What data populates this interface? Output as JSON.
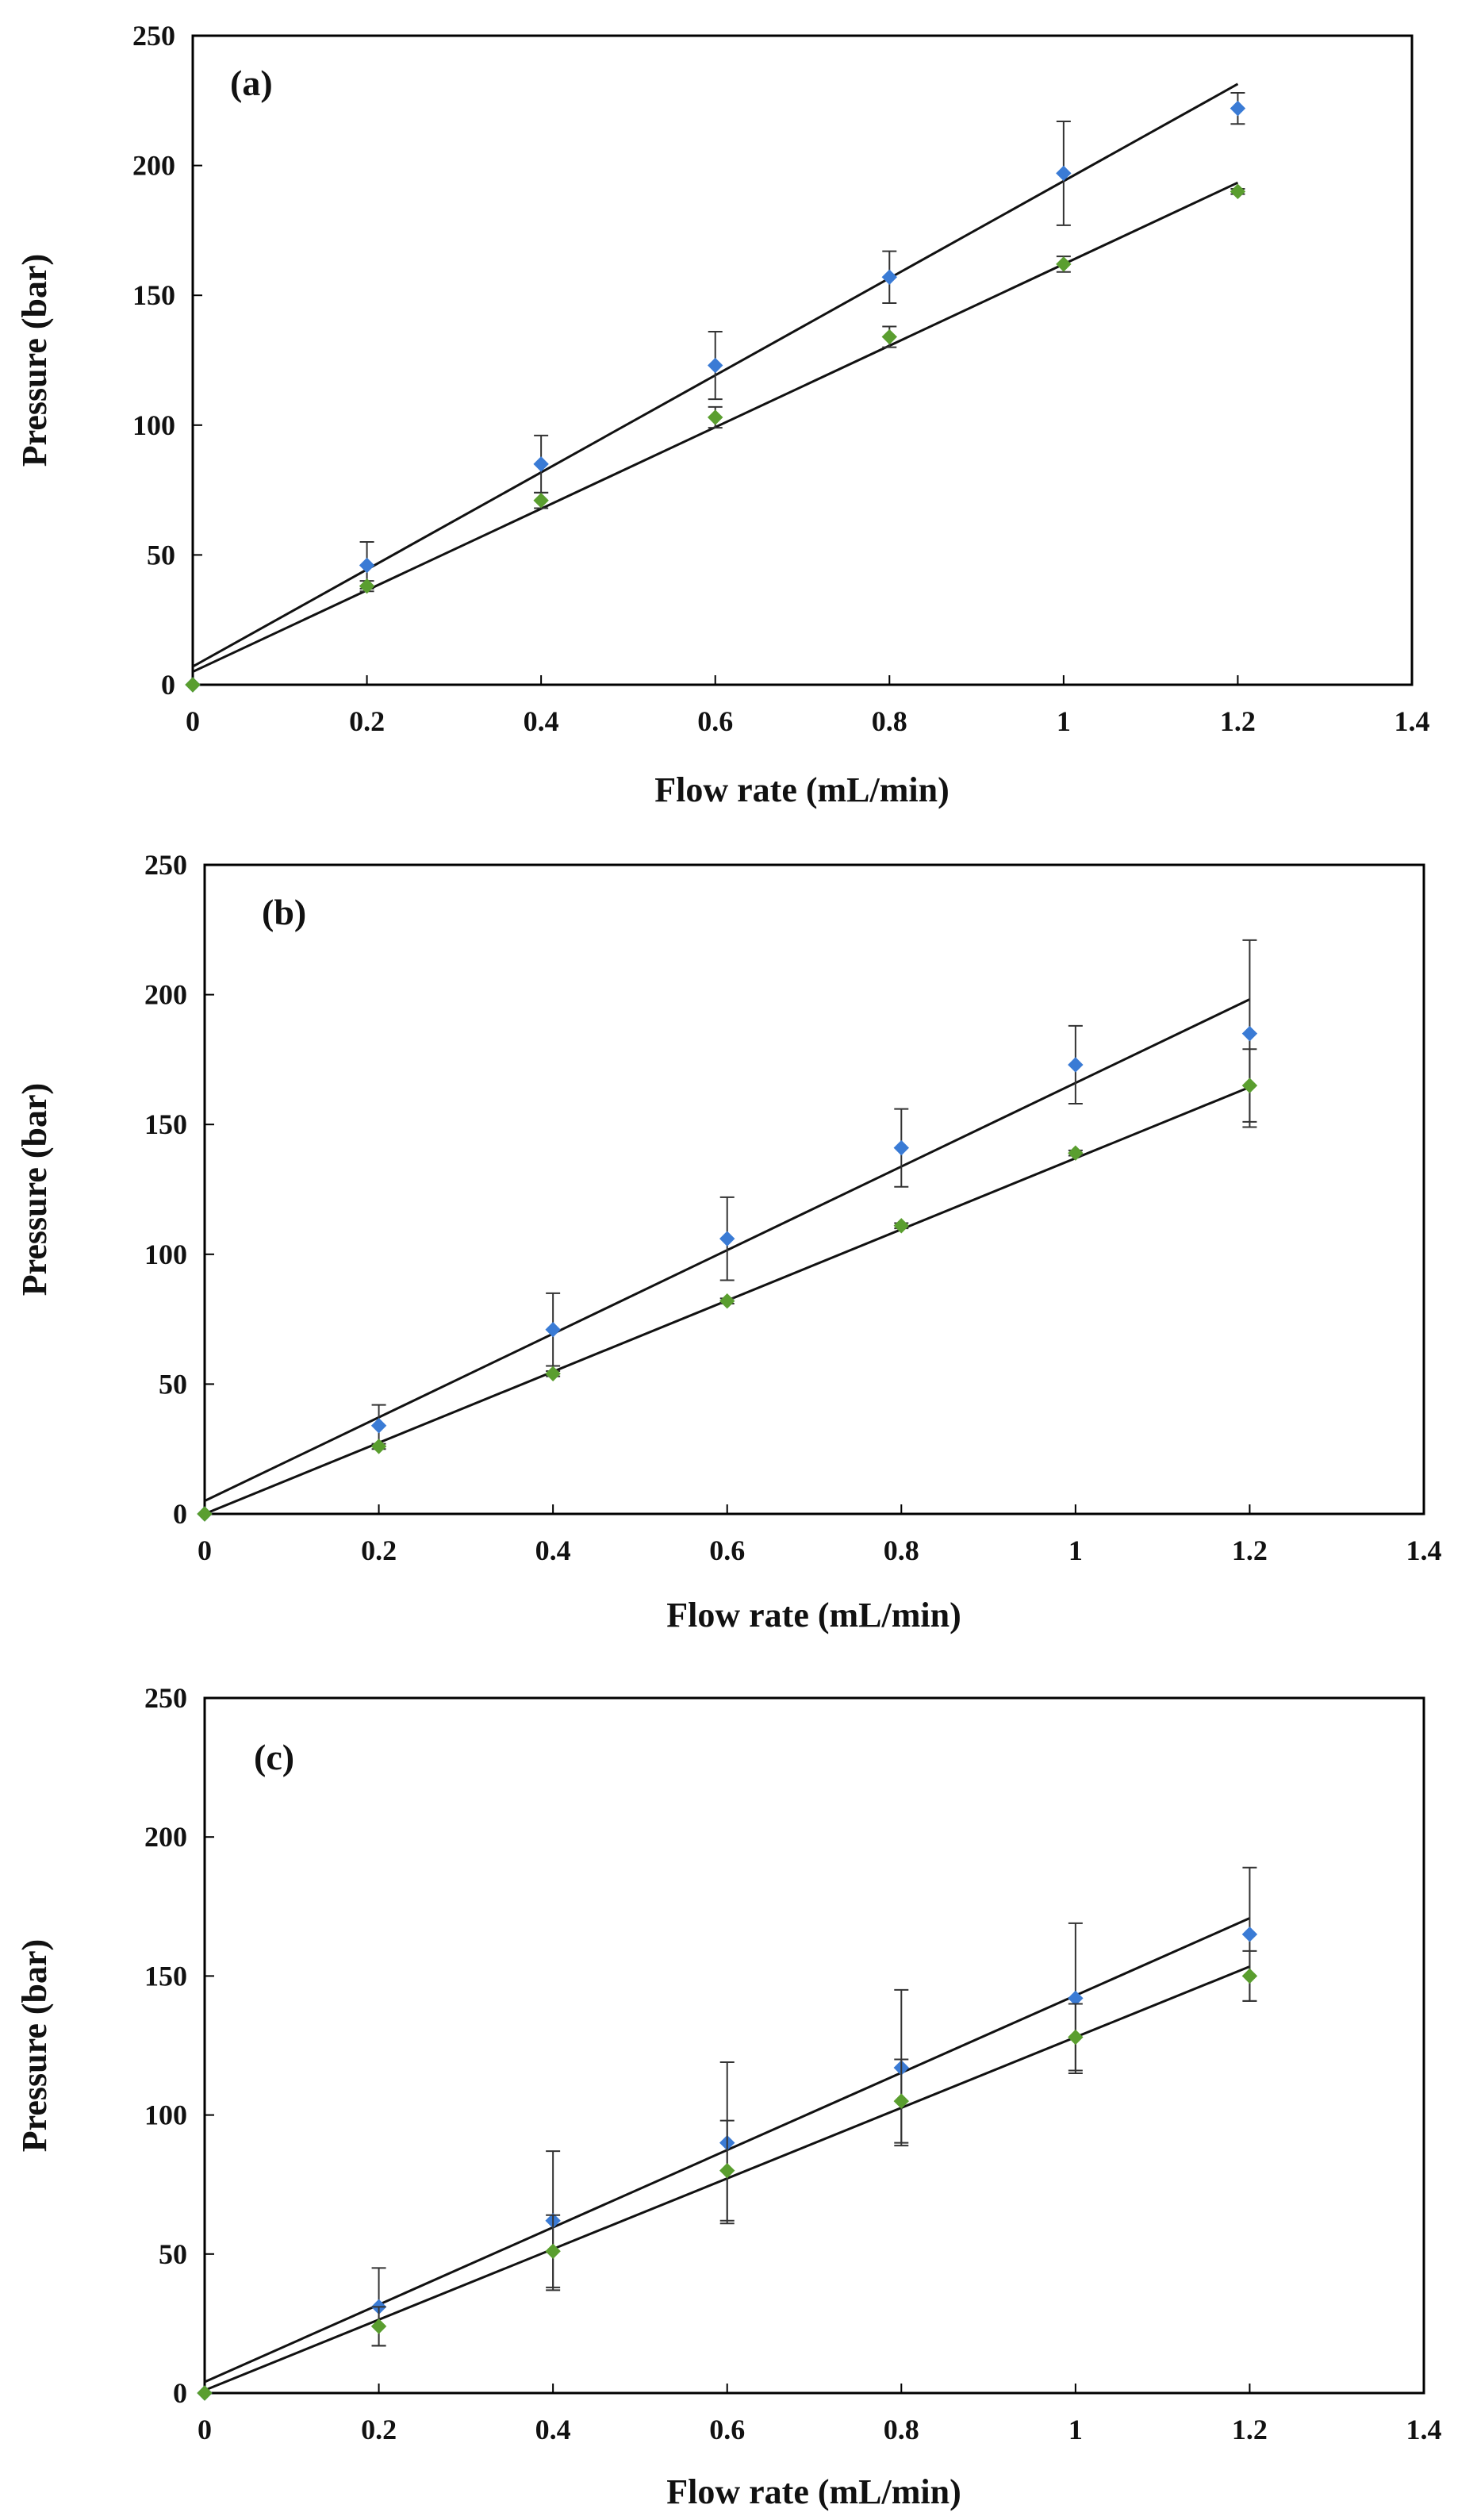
{
  "chart_data": [
    {
      "type": "scatter",
      "panel_label": "(a)",
      "xlabel": "Flow rate (mL/min)",
      "ylabel": "Pressure (bar)",
      "xlim": [
        0,
        1.4
      ],
      "ylim": [
        0,
        250
      ],
      "xticks": [
        "0",
        "0.2",
        "0.4",
        "0.6",
        "0.8",
        "1",
        "1.2",
        "1.4"
      ],
      "yticks": [
        "0",
        "50",
        "100",
        "150",
        "200",
        "250"
      ],
      "grid": false,
      "series": [
        {
          "color": "#3a7bd5",
          "x": [
            0,
            0.2,
            0.4,
            0.6,
            0.8,
            1.0,
            1.2
          ],
          "y": [
            0,
            46,
            85,
            123,
            157,
            197,
            222
          ],
          "err": [
            0,
            9,
            11,
            13,
            10,
            20,
            6
          ],
          "fit": [
            7,
            187
          ]
        },
        {
          "color": "#5a9e2f",
          "x": [
            0,
            0.2,
            0.4,
            0.6,
            0.8,
            1.0,
            1.2
          ],
          "y": [
            0,
            38,
            71,
            103,
            134,
            162,
            190
          ],
          "err": [
            0,
            2,
            3,
            4,
            4,
            3,
            1
          ],
          "fit": [
            5,
            157
          ]
        }
      ]
    },
    {
      "type": "scatter",
      "panel_label": "(b)",
      "xlabel": "Flow rate (mL/min)",
      "ylabel": "Pressure (bar)",
      "xlim": [
        0,
        1.4
      ],
      "ylim": [
        0,
        250
      ],
      "xticks": [
        "0",
        "0.2",
        "0.4",
        "0.6",
        "0.8",
        "1",
        "1.2",
        "1.4"
      ],
      "yticks": [
        "0",
        "50",
        "100",
        "150",
        "200",
        "250"
      ],
      "grid": false,
      "series": [
        {
          "color": "#3a7bd5",
          "x": [
            0,
            0.2,
            0.4,
            0.6,
            0.8,
            1.0,
            1.2
          ],
          "y": [
            0,
            34,
            71,
            106,
            141,
            173,
            185
          ],
          "err": [
            0,
            8,
            14,
            16,
            15,
            15,
            36
          ],
          "fit": [
            5,
            161
          ]
        },
        {
          "color": "#5a9e2f",
          "x": [
            0,
            0.2,
            0.4,
            0.6,
            0.8,
            1.0,
            1.2
          ],
          "y": [
            0,
            26,
            54,
            82,
            111,
            139,
            165
          ],
          "err": [
            0,
            1,
            1,
            1,
            1,
            1,
            14
          ],
          "fit": [
            0,
            137
          ]
        }
      ]
    },
    {
      "type": "scatter",
      "panel_label": "(c)",
      "xlabel": "Flow rate (mL/min)",
      "ylabel": "Pressure (bar)",
      "xlim": [
        0,
        1.4
      ],
      "ylim": [
        0,
        250
      ],
      "xticks": [
        "0",
        "0.2",
        "0.4",
        "0.6",
        "0.8",
        "1",
        "1.2",
        "1.4"
      ],
      "yticks": [
        "0",
        "50",
        "100",
        "150",
        "200",
        "250"
      ],
      "grid": false,
      "series": [
        {
          "color": "#3a7bd5",
          "x": [
            0,
            0.2,
            0.4,
            0.6,
            0.8,
            1.0,
            1.2
          ],
          "y": [
            0,
            31,
            62,
            90,
            117,
            142,
            165
          ],
          "err": [
            0,
            14,
            25,
            29,
            28,
            27,
            24
          ],
          "fit": [
            4,
            139
          ]
        },
        {
          "color": "#5a9e2f",
          "x": [
            0,
            0.2,
            0.4,
            0.6,
            0.8,
            1.0,
            1.2
          ],
          "y": [
            0,
            24,
            51,
            80,
            105,
            128,
            150
          ],
          "err": [
            0,
            7,
            13,
            18,
            15,
            12,
            9
          ],
          "fit": [
            1,
            127
          ]
        }
      ]
    }
  ]
}
